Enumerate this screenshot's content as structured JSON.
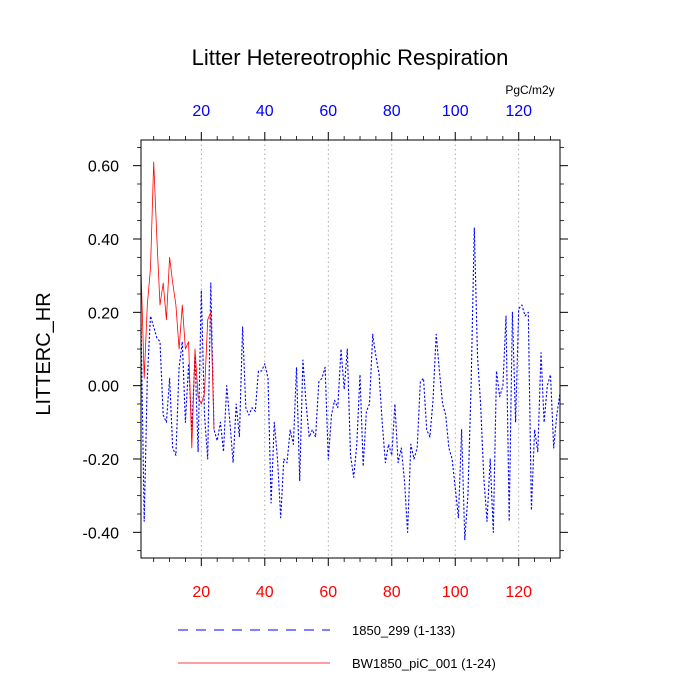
{
  "chart_data": {
    "type": "line",
    "title": "Litter Hetereotrophic Respiration",
    "ylabel": "LITTERC_HR",
    "xlabel": "",
    "units": "PgC/m2y",
    "xlim": [
      1,
      133
    ],
    "ylim": [
      -0.47,
      0.67
    ],
    "x_ticks": [
      20,
      40,
      60,
      80,
      100,
      120
    ],
    "x_tick_labels": [
      "20",
      "40",
      "60",
      "80",
      "100",
      "120"
    ],
    "y_ticks": [
      -0.4,
      -0.2,
      0.0,
      0.2,
      0.4,
      0.6
    ],
    "y_tick_labels": [
      "-0.40",
      "-0.20",
      "0.00",
      "0.20",
      "0.40",
      "0.60"
    ],
    "grid": "vertical-dotted",
    "colors": {
      "series_1": "#0000ff",
      "series_2": "#ff0000",
      "top_axis": "#0000ff",
      "bottom_axis": "#ff0000",
      "frame": "#000000",
      "grid": "#999999"
    },
    "series": [
      {
        "name": "1850_299 (1-133)",
        "style": "dashed",
        "color": "#0000ff",
        "x_start": 1,
        "values": [
          0.18,
          -0.37,
          0.02,
          0.19,
          0.16,
          0.13,
          0.12,
          -0.08,
          -0.1,
          0.02,
          -0.17,
          -0.19,
          0.05,
          0.12,
          -0.1,
          0.06,
          -0.12,
          0.08,
          -0.18,
          0.26,
          -0.08,
          -0.2,
          0.28,
          -0.12,
          -0.15,
          -0.1,
          -0.18,
          0.0,
          -0.1,
          -0.21,
          -0.05,
          -0.14,
          0.16,
          -0.06,
          -0.08,
          -0.06,
          -0.07,
          0.04,
          0.04,
          0.06,
          0.02,
          -0.32,
          -0.1,
          -0.2,
          -0.36,
          -0.2,
          -0.21,
          -0.12,
          -0.16,
          0.05,
          -0.26,
          0.07,
          -0.05,
          -0.14,
          -0.12,
          -0.14,
          0.01,
          0.02,
          0.05,
          -0.2,
          -0.08,
          -0.04,
          -0.06,
          0.1,
          -0.01,
          0.1,
          -0.19,
          -0.25,
          -0.16,
          0.03,
          -0.22,
          -0.07,
          -0.05,
          0.14,
          0.08,
          0.03,
          -0.1,
          -0.21,
          -0.16,
          -0.19,
          -0.05,
          -0.21,
          -0.17,
          -0.26,
          -0.4,
          -0.16,
          -0.2,
          -0.17,
          0.01,
          0.02,
          -0.12,
          -0.14,
          -0.04,
          0.14,
          0.04,
          -0.05,
          -0.08,
          -0.17,
          -0.2,
          -0.28,
          -0.36,
          -0.12,
          -0.42,
          -0.3,
          0.0,
          0.43,
          0.08,
          -0.05,
          -0.25,
          -0.37,
          -0.2,
          -0.4,
          0.04,
          -0.03,
          0.0,
          0.19,
          -0.37,
          0.2,
          -0.1,
          0.21,
          0.22,
          0.19,
          0.2,
          -0.34,
          -0.12,
          -0.18,
          0.09,
          -0.1,
          0.0,
          0.03,
          -0.17,
          -0.08,
          -0.02
        ]
      },
      {
        "name": "BW1850_piC_001 (1-24)",
        "style": "solid",
        "color": "#ff0000",
        "x_start": 1,
        "values": [
          0.32,
          0.02,
          0.22,
          0.32,
          0.61,
          0.4,
          0.22,
          0.28,
          0.18,
          0.35,
          0.28,
          0.22,
          0.1,
          0.22,
          0.1,
          0.12,
          -0.17,
          0.1,
          -0.03,
          -0.05,
          -0.02,
          0.18,
          0.2,
          -0.12
        ]
      }
    ]
  }
}
